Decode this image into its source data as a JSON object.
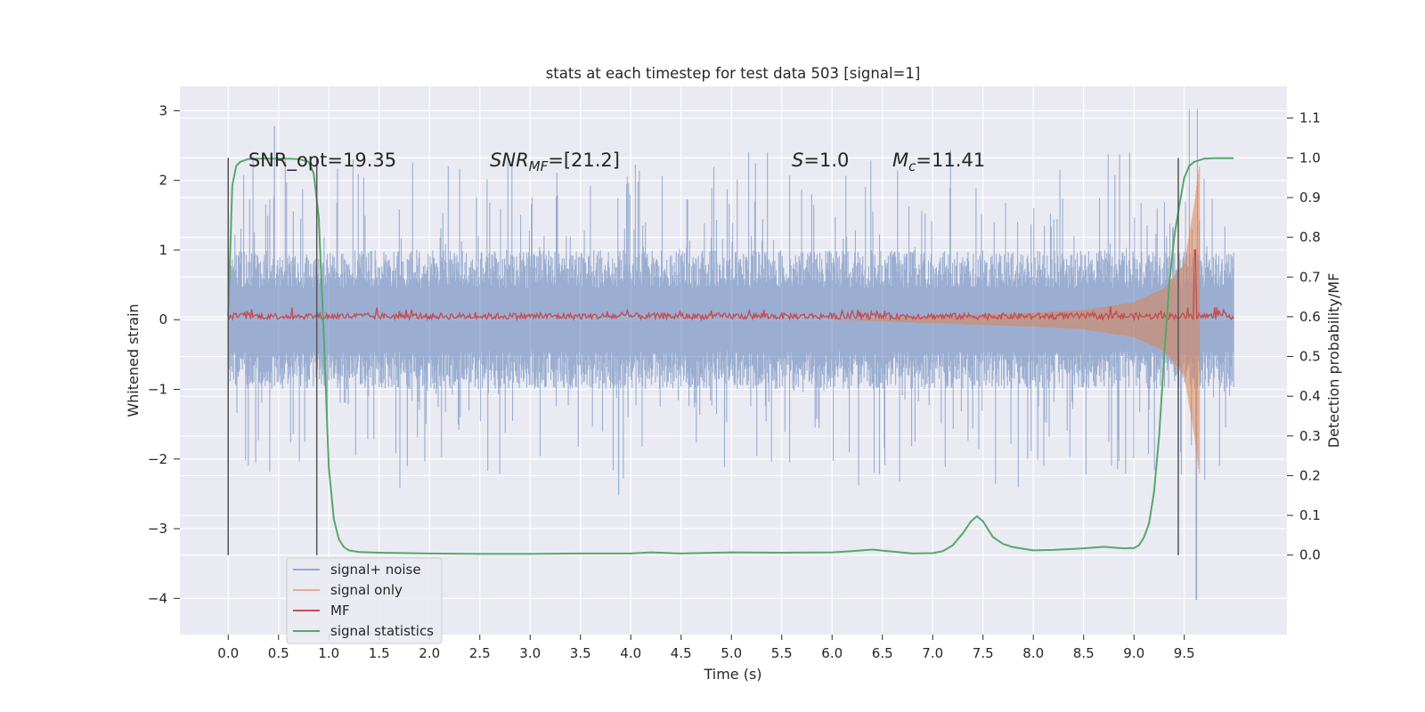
{
  "chart_data": {
    "type": "line",
    "title": "stats at each timestep for test data 503 [signal=1]",
    "xlabel": "Time (s)",
    "ylabel": "Whitened strain",
    "y2label": "Detection probability/MF",
    "xlim": [
      -0.48,
      10.52
    ],
    "ylim": [
      -4.52,
      3.35
    ],
    "y2lim": [
      -0.2,
      1.18
    ],
    "xticks": [
      0.0,
      0.5,
      1.0,
      1.5,
      2.0,
      2.5,
      3.0,
      3.5,
      4.0,
      4.5,
      5.0,
      5.5,
      6.0,
      6.5,
      7.0,
      7.5,
      8.0,
      8.5,
      9.0,
      9.5
    ],
    "xtick_labels": [
      "0.0",
      "0.5",
      "1.0",
      "1.5",
      "2.0",
      "2.5",
      "3.0",
      "3.5",
      "4.0",
      "4.5",
      "5.0",
      "5.5",
      "6.0",
      "6.5",
      "7.0",
      "7.5",
      "8.0",
      "8.5",
      "9.0",
      "9.5"
    ],
    "yticks": [
      3,
      2,
      1,
      0,
      -1,
      -2,
      -3,
      -4
    ],
    "ytick_labels": [
      "3",
      "2",
      "1",
      "0",
      "−1",
      "−2",
      "−3",
      "−4"
    ],
    "y2ticks": [
      1.1,
      1.0,
      0.9,
      0.8,
      0.7,
      0.6,
      0.5,
      0.4,
      0.3,
      0.2,
      0.1,
      0.0
    ],
    "y2tick_labels": [
      "1.1",
      "1.0",
      "0.9",
      "0.8",
      "0.7",
      "0.6",
      "0.5",
      "0.4",
      "0.3",
      "0.2",
      "0.1",
      "0.0"
    ],
    "grid": true,
    "legend_position": "lower-left",
    "annotations": {
      "snr_opt": "SNR_opt=19.35",
      "snr_mf_prefix": "SNR",
      "snr_mf_sub": "MF",
      "snr_mf_value": "=[21.2]",
      "s_prefix": "S",
      "s_value": "=1.0",
      "mc_prefix": "M",
      "mc_sub": "c",
      "mc_value": "=11.41"
    },
    "annotation_positions": {
      "snr_opt": {
        "x": 0.2,
        "y": 2.2
      },
      "snr_mf": {
        "x": 2.6,
        "y": 2.2
      },
      "s": {
        "x": 5.6,
        "y": 2.2
      },
      "mc": {
        "x": 6.6,
        "y": 2.2
      }
    },
    "vlines": [
      {
        "x": 0.0,
        "y2_from": 0.0,
        "y2_to": 1.0
      },
      {
        "x": 0.88,
        "y2_from": 0.0,
        "y2_to": 1.0
      },
      {
        "x": 9.44,
        "y2_from": 0.0,
        "y2_to": 1.0
      }
    ],
    "series": [
      {
        "name": "signal+ noise",
        "color": "#4c72b0",
        "axis": "left",
        "x_range": [
          0.0,
          9.99
        ],
        "description_envelope": {
          "typical_abs": 0.55,
          "spike_max": 1.5,
          "notable_spikes": [
            {
              "x": 0.46,
              "y": 2.78
            },
            {
              "x": 9.55,
              "y": 3.02
            },
            {
              "x": 9.63,
              "y": 3.02
            },
            {
              "x": 9.62,
              "y": -4.02
            },
            {
              "x": 3.88,
              "y": -2.52
            },
            {
              "x": 0.76,
              "y": -1.75
            },
            {
              "x": 1.78,
              "y": -2.1
            }
          ]
        }
      },
      {
        "name": "signal only",
        "color": "#dd8452",
        "axis": "left",
        "x_range": [
          6.0,
          9.65
        ],
        "amplitude_profile": [
          {
            "x": 6.0,
            "amp": 0.0
          },
          {
            "x": 7.0,
            "amp": 0.05
          },
          {
            "x": 8.0,
            "amp": 0.1
          },
          {
            "x": 8.5,
            "amp": 0.14
          },
          {
            "x": 9.0,
            "amp": 0.25
          },
          {
            "x": 9.3,
            "amp": 0.45
          },
          {
            "x": 9.5,
            "amp": 0.8
          },
          {
            "x": 9.6,
            "amp": 1.65
          },
          {
            "x": 9.65,
            "amp": 2.2
          }
        ]
      },
      {
        "name": "MF",
        "color": "#c44e52",
        "axis": "left",
        "x_range": [
          0.0,
          9.99
        ],
        "baseline": 0.05,
        "peak": {
          "x": 9.61,
          "y": 1.0
        }
      },
      {
        "name": "signal statistics",
        "color": "#55a868",
        "axis": "right",
        "x": [
          0.0,
          0.04,
          0.08,
          0.12,
          0.2,
          0.3,
          0.4,
          0.5,
          0.6,
          0.7,
          0.8,
          0.85,
          0.9,
          0.95,
          1.0,
          1.05,
          1.1,
          1.15,
          1.2,
          1.3,
          1.5,
          2.0,
          2.5,
          3.0,
          3.5,
          4.0,
          4.2,
          4.5,
          5.0,
          5.5,
          6.0,
          6.2,
          6.4,
          6.6,
          6.8,
          7.0,
          7.1,
          7.2,
          7.3,
          7.38,
          7.44,
          7.5,
          7.6,
          7.7,
          7.8,
          8.0,
          8.2,
          8.5,
          8.7,
          8.9,
          9.0,
          9.05,
          9.1,
          9.15,
          9.2,
          9.25,
          9.3,
          9.35,
          9.4,
          9.45,
          9.5,
          9.55,
          9.6,
          9.7,
          9.8,
          9.99
        ],
        "values": [
          0.6,
          0.93,
          0.98,
          0.99,
          0.997,
          0.998,
          0.998,
          0.998,
          0.998,
          0.997,
          0.99,
          0.96,
          0.85,
          0.55,
          0.22,
          0.09,
          0.04,
          0.02,
          0.012,
          0.008,
          0.006,
          0.004,
          0.003,
          0.003,
          0.004,
          0.004,
          0.007,
          0.004,
          0.007,
          0.006,
          0.007,
          0.01,
          0.014,
          0.009,
          0.004,
          0.005,
          0.01,
          0.025,
          0.055,
          0.085,
          0.098,
          0.085,
          0.045,
          0.028,
          0.02,
          0.012,
          0.013,
          0.017,
          0.021,
          0.017,
          0.018,
          0.025,
          0.045,
          0.08,
          0.16,
          0.3,
          0.5,
          0.68,
          0.8,
          0.88,
          0.95,
          0.98,
          0.99,
          0.998,
          0.999,
          0.999
        ]
      }
    ]
  }
}
